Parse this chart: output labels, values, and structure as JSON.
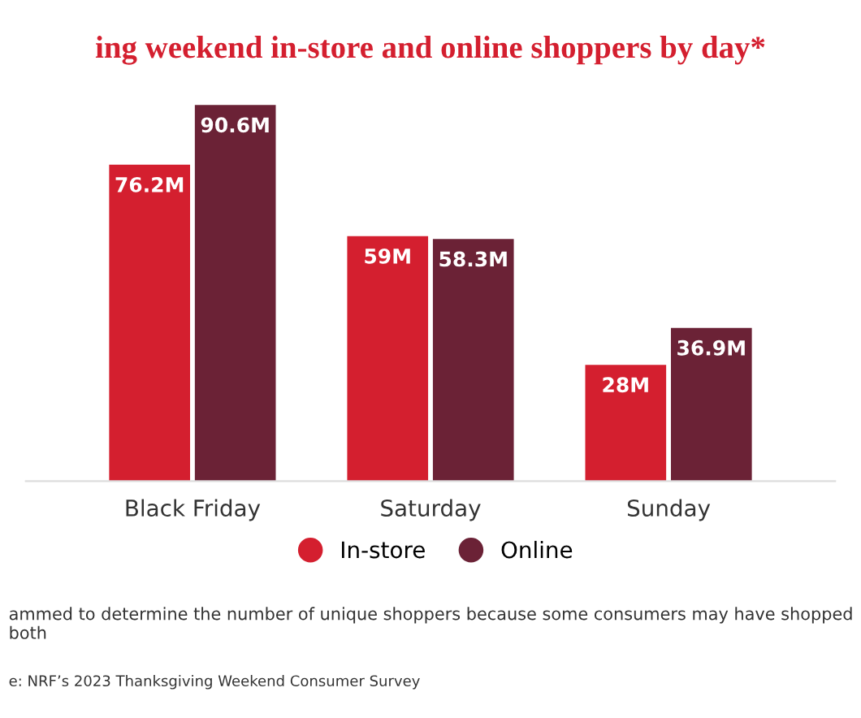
{
  "chart_data": {
    "type": "bar",
    "title": "ing weekend in-store and online shoppers by day*",
    "categories": [
      "Black Friday",
      "Saturday",
      "Sunday"
    ],
    "series": [
      {
        "name": "In-store",
        "color": "#d41f2f",
        "values": [
          76.2,
          59,
          28
        ],
        "value_labels": [
          "76.2M",
          "59M",
          "28M"
        ]
      },
      {
        "name": "Online",
        "color": "#6b2236",
        "values": [
          90.6,
          58.3,
          36.9
        ],
        "value_labels": [
          "90.6M",
          "58.3M",
          "36.9M"
        ]
      }
    ],
    "legend": "bottom",
    "annotations": [
      "ammed to determine the number of unique shoppers because some consumers may have shopped both",
      "e: NRF’s 2023 Thanksgiving Weekend Consumer Survey"
    ]
  }
}
